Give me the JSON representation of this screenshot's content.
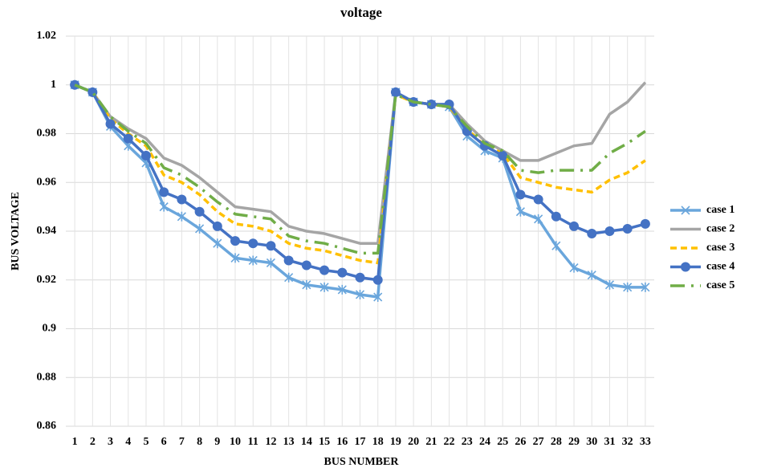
{
  "chart_data": {
    "type": "line",
    "title": "voltage",
    "x_label": "BUS NUMBER",
    "y_label": "BUS VOLTAGE",
    "categories": [
      1,
      2,
      3,
      4,
      5,
      6,
      7,
      8,
      9,
      10,
      11,
      12,
      13,
      14,
      15,
      16,
      17,
      18,
      19,
      20,
      21,
      22,
      23,
      24,
      25,
      26,
      27,
      28,
      29,
      30,
      31,
      32,
      33
    ],
    "ylim": [
      0.86,
      1.02
    ],
    "yticks": [
      0.86,
      0.88,
      0.9,
      0.92,
      0.94,
      0.96,
      0.98,
      1,
      1.02
    ],
    "grid": true,
    "legend": "right",
    "series": [
      {
        "name": "case 1",
        "color": "#6aa6dc",
        "marker": "x",
        "dash": "none",
        "values": [
          1,
          0.997,
          0.983,
          0.975,
          0.968,
          0.95,
          0.946,
          0.941,
          0.935,
          0.929,
          0.928,
          0.927,
          0.921,
          0.918,
          0.917,
          0.916,
          0.914,
          0.913,
          0.997,
          0.993,
          0.992,
          0.991,
          0.979,
          0.973,
          0.97,
          0.948,
          0.945,
          0.934,
          0.925,
          0.922,
          0.918,
          0.917,
          0.917
        ]
      },
      {
        "name": "case 2",
        "color": "#a5a5a5",
        "marker": "none",
        "dash": "none",
        "values": [
          1,
          0.997,
          0.987,
          0.982,
          0.978,
          0.97,
          0.967,
          0.962,
          0.956,
          0.95,
          0.949,
          0.948,
          0.942,
          0.94,
          0.939,
          0.937,
          0.935,
          0.935,
          0.997,
          0.993,
          0.992,
          0.992,
          0.984,
          0.977,
          0.973,
          0.969,
          0.969,
          0.972,
          0.975,
          0.976,
          0.988,
          0.993,
          1.001
        ]
      },
      {
        "name": "case 3",
        "color": "#ffc000",
        "marker": "none",
        "dash": "8 5",
        "values": [
          1,
          0.997,
          0.986,
          0.98,
          0.975,
          0.963,
          0.96,
          0.955,
          0.948,
          0.943,
          0.942,
          0.94,
          0.935,
          0.933,
          0.932,
          0.93,
          0.928,
          0.927,
          0.996,
          0.993,
          0.992,
          0.991,
          0.982,
          0.975,
          0.972,
          0.962,
          0.96,
          0.958,
          0.957,
          0.956,
          0.961,
          0.964,
          0.969
        ]
      },
      {
        "name": "case 4",
        "color": "#4472c4",
        "marker": "circle",
        "dash": "none",
        "values": [
          1,
          0.997,
          0.984,
          0.978,
          0.971,
          0.956,
          0.953,
          0.948,
          0.942,
          0.936,
          0.935,
          0.934,
          0.928,
          0.926,
          0.924,
          0.923,
          0.921,
          0.92,
          0.997,
          0.993,
          0.992,
          0.992,
          0.981,
          0.975,
          0.971,
          0.955,
          0.953,
          0.946,
          0.942,
          0.939,
          0.94,
          0.941,
          0.943
        ]
      },
      {
        "name": "case 5",
        "color": "#70ad47",
        "marker": "none",
        "dash": "18 8 3 8",
        "values": [
          1,
          0.997,
          0.987,
          0.981,
          0.976,
          0.966,
          0.963,
          0.958,
          0.952,
          0.947,
          0.946,
          0.945,
          0.938,
          0.936,
          0.935,
          0.933,
          0.931,
          0.931,
          0.996,
          0.993,
          0.992,
          0.991,
          0.983,
          0.976,
          0.973,
          0.965,
          0.964,
          0.965,
          0.965,
          0.965,
          0.972,
          0.976,
          0.981
        ]
      }
    ]
  }
}
